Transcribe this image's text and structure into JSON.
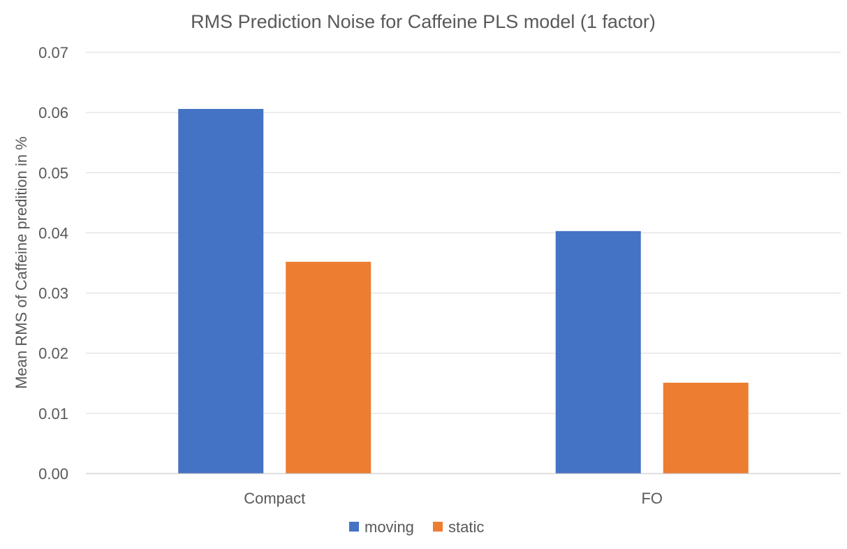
{
  "chart_data": {
    "type": "bar",
    "title": "RMS Prediction Noise for Caffeine PLS model (1 factor)",
    "xlabel": "",
    "ylabel": "Mean RMS of Caffeine predition in %",
    "categories": [
      "Compact",
      "FO"
    ],
    "series": [
      {
        "name": "moving",
        "color": "#4472C4",
        "values": [
          0.0606,
          0.0403
        ]
      },
      {
        "name": "static",
        "color": "#ED7D31",
        "values": [
          0.0352,
          0.0151
        ]
      }
    ],
    "ylim": [
      0,
      0.07
    ],
    "yticks": [
      "0.00",
      "0.01",
      "0.02",
      "0.03",
      "0.04",
      "0.05",
      "0.06",
      "0.07"
    ],
    "grid": true,
    "legend_position": "bottom",
    "gridline_color": "#D9D9D9",
    "axis_color": "#BFBFBF",
    "text_color": "#595959"
  }
}
